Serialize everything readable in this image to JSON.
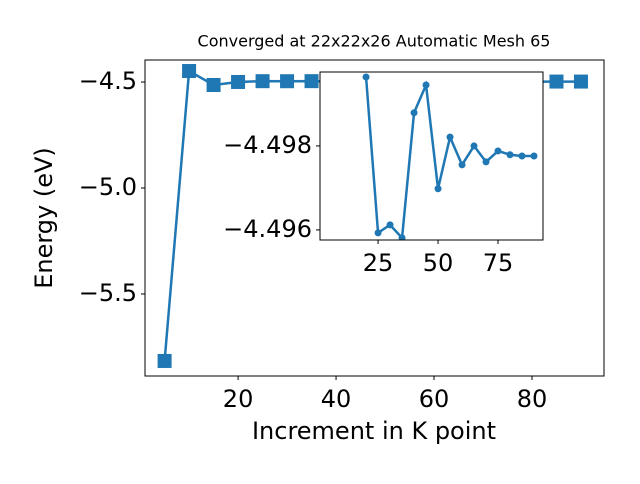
{
  "chart_data": [
    {
      "type": "line",
      "title": "Converged at 22x22x26 Automatic Mesh 65",
      "x_label": "Increment in K point",
      "y_label": "Energy (eV)",
      "x": [
        5,
        10,
        15,
        20,
        25,
        30,
        35,
        40,
        45,
        50,
        55,
        60,
        65,
        70,
        75,
        80,
        85,
        90
      ],
      "series": [
        {
          "color": "#1f77b4",
          "marker": "square",
          "values": [
            -5.816,
            -4.448,
            -4.514,
            -4.49964,
            -4.49593,
            -4.49612,
            -4.49581,
            -4.49879,
            -4.49945,
            -4.49698,
            -4.49821,
            -4.49755,
            -4.498,
            -4.49762,
            -4.49788,
            -4.49779,
            -4.49776,
            -4.49776
          ]
        }
      ],
      "xlim": [
        1.0,
        94.7
      ],
      "ylim": [
        -5.887,
        -4.396
      ],
      "xticks": [
        20,
        40,
        60,
        80
      ],
      "yticks": [
        {
          "value": -5.5,
          "label": "−5.5"
        },
        {
          "value": -5.0,
          "label": "−5.0"
        },
        {
          "value": -4.5,
          "label": "−4.5"
        }
      ]
    },
    {
      "type": "line",
      "x": [
        20,
        25,
        30,
        35,
        40,
        45,
        50,
        55,
        60,
        65,
        70,
        75,
        80,
        85,
        90
      ],
      "series": [
        {
          "color": "#1f77b4",
          "marker": "circle",
          "values": [
            -4.49964,
            -4.49593,
            -4.49612,
            -4.49581,
            -4.49879,
            -4.49945,
            -4.49698,
            -4.49821,
            -4.49755,
            -4.498,
            -4.49762,
            -4.49788,
            -4.49779,
            -4.49776,
            -4.49776
          ]
        }
      ],
      "xlim": [
        0.8,
        93.75
      ],
      "ylim": [
        -4.49576,
        -4.49976
      ],
      "xticks": [
        25,
        50,
        75
      ],
      "yticks": [
        {
          "value": -4.496,
          "label": "−4.496"
        },
        {
          "value": -4.498,
          "label": "−4.498"
        }
      ]
    }
  ]
}
